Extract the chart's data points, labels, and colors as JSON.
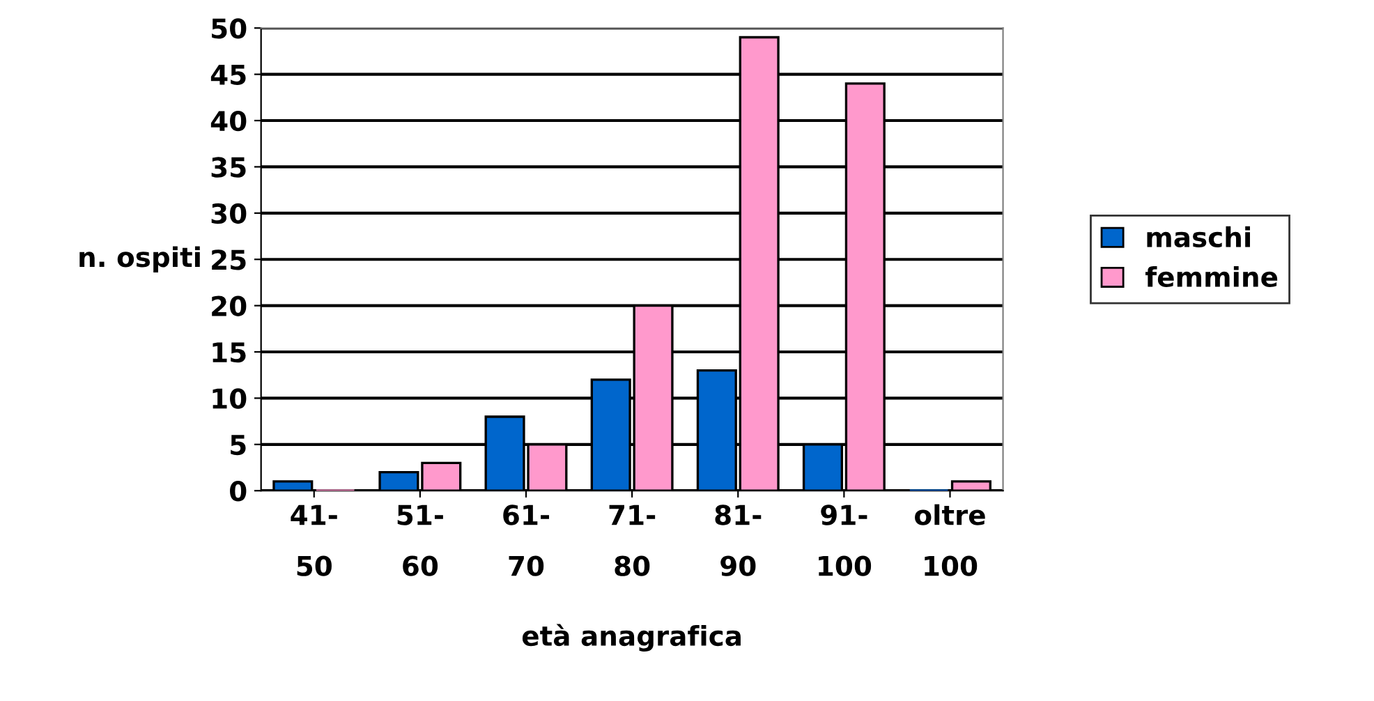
{
  "chart_data": {
    "type": "bar",
    "xlabel": "età anagrafica",
    "ylabel": "n. ospiti",
    "categories": [
      "41-\n50",
      "51-\n60",
      "61-\n70",
      "71-\n80",
      "81-\n90",
      "91-\n100",
      "oltre\n100"
    ],
    "series": [
      {
        "name": "maschi",
        "color": "#0066cc",
        "values": [
          1,
          2,
          8,
          12,
          13,
          5,
          0
        ]
      },
      {
        "name": "femmine",
        "color": "#ff99cc",
        "values": [
          0,
          3,
          5,
          20,
          49,
          44,
          1
        ]
      }
    ],
    "ylim": [
      0,
      50
    ],
    "yticks": [
      0,
      5,
      10,
      15,
      20,
      25,
      30,
      35,
      40,
      45,
      50
    ],
    "grid": "y",
    "legend": "right"
  }
}
